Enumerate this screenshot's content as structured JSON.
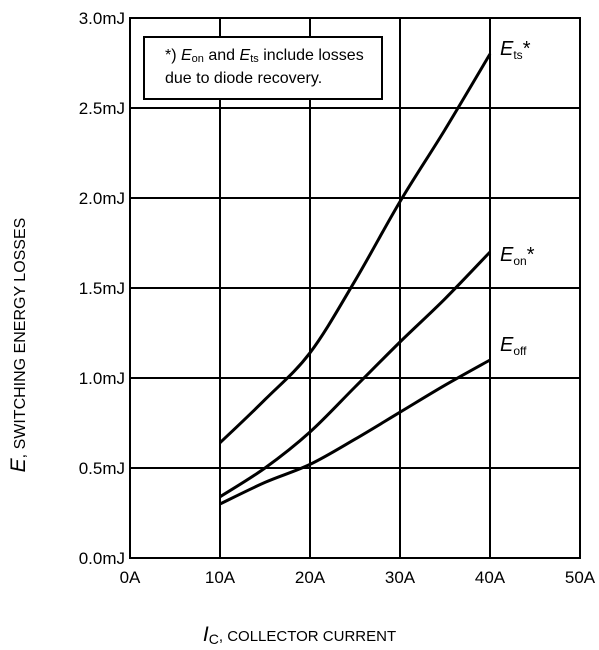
{
  "chart_data": {
    "type": "line",
    "xlabel_symbol": "I",
    "xlabel_sub": "C",
    "xlabel_text": ", COLLECTOR CURRENT",
    "ylabel_symbol": "E",
    "ylabel_text": ", SWITCHING ENERGY LOSSES",
    "x_ticks": [
      "0A",
      "10A",
      "20A",
      "30A",
      "40A",
      "50A"
    ],
    "y_ticks": [
      "0.0mJ",
      "0.5mJ",
      "1.0mJ",
      "1.5mJ",
      "2.0mJ",
      "2.5mJ",
      "3.0mJ"
    ],
    "xlim": [
      0,
      50
    ],
    "ylim": [
      0,
      3.0
    ],
    "grid": true,
    "note": {
      "prefix": "*) ",
      "sym1": "E",
      "sub1": "on",
      "mid": " and ",
      "sym2": "E",
      "sub2": "ts",
      "line1_rest": " include losses",
      "line2": "due to diode recovery."
    },
    "series": [
      {
        "name": "Ets*",
        "label_sym": "E",
        "label_sub": "ts",
        "label_sup": "*",
        "x": [
          10,
          15,
          20,
          25,
          30,
          35,
          40
        ],
        "y": [
          0.64,
          0.88,
          1.14,
          1.54,
          1.98,
          2.38,
          2.8
        ]
      },
      {
        "name": "Eon*",
        "label_sym": "E",
        "label_sub": "on",
        "label_sup": "*",
        "x": [
          10,
          15,
          20,
          25,
          30,
          35,
          40
        ],
        "y": [
          0.34,
          0.5,
          0.7,
          0.95,
          1.2,
          1.44,
          1.7
        ]
      },
      {
        "name": "Eoff",
        "label_sym": "E",
        "label_sub": "off",
        "label_sup": "",
        "x": [
          10,
          15,
          20,
          25,
          30,
          35,
          40
        ],
        "y": [
          0.3,
          0.42,
          0.52,
          0.66,
          0.81,
          0.96,
          1.1
        ]
      }
    ]
  }
}
